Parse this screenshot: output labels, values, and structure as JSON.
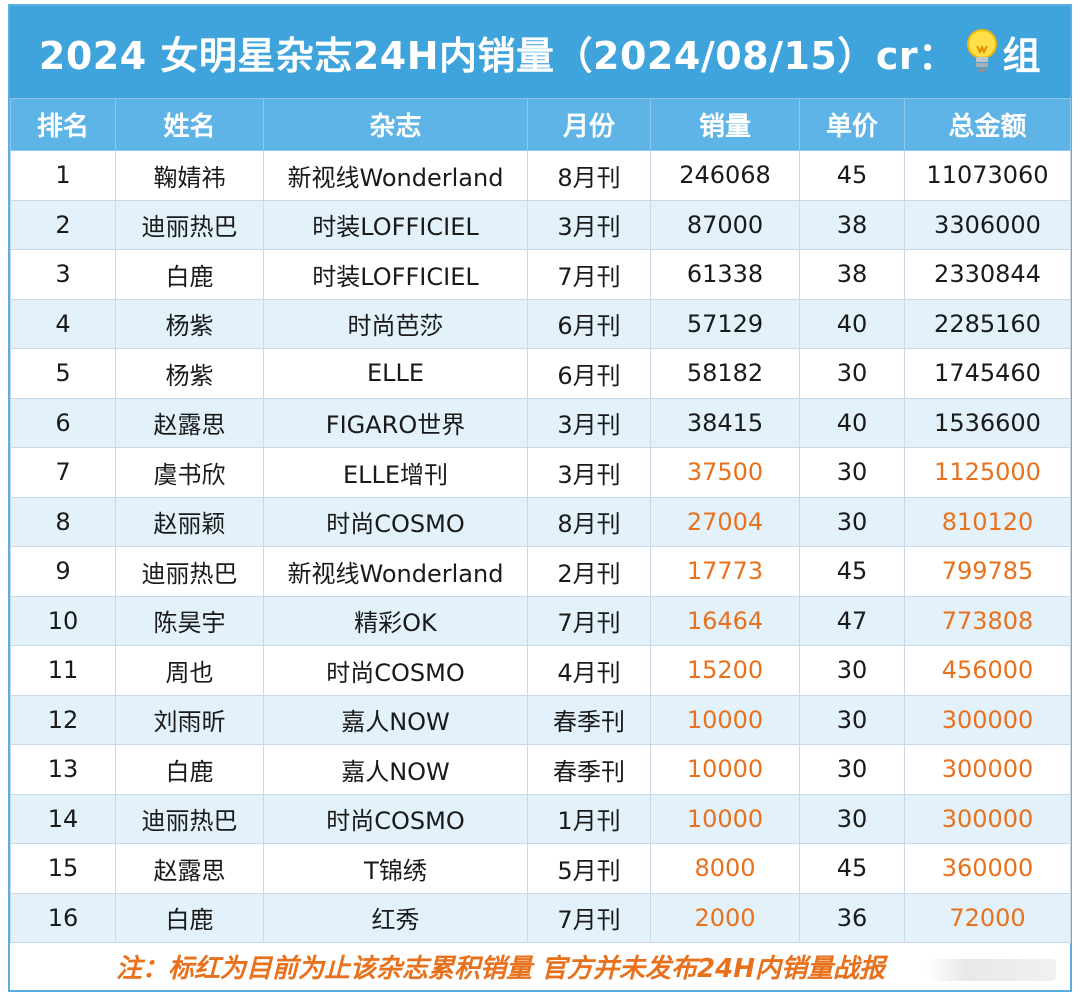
{
  "title": {
    "text_before": "2024 女明星杂志24H内销量（2024/08/15）cr：",
    "text_after": "组",
    "icon": "light-bulb-icon"
  },
  "colors": {
    "header_bg": "#3fa3dc",
    "column_header_bg": "#5eb4e6",
    "stripe_bg": "#e3f1fb",
    "highlight_text": "#e8711d"
  },
  "table": {
    "columns": [
      "排名",
      "姓名",
      "杂志",
      "月份",
      "销量",
      "单价",
      "总金额"
    ],
    "rows": [
      {
        "rank": "1",
        "name": "鞠婧祎",
        "magazine": "新视线Wonderland",
        "month": "8月刊",
        "sales": "246068",
        "price": "45",
        "total": "11073060",
        "highlight": false
      },
      {
        "rank": "2",
        "name": "迪丽热巴",
        "magazine": "时装LOFFICIEL",
        "month": "3月刊",
        "sales": "87000",
        "price": "38",
        "total": "3306000",
        "highlight": false
      },
      {
        "rank": "3",
        "name": "白鹿",
        "magazine": "时装LOFFICIEL",
        "month": "7月刊",
        "sales": "61338",
        "price": "38",
        "total": "2330844",
        "highlight": false
      },
      {
        "rank": "4",
        "name": "杨紫",
        "magazine": "时尚芭莎",
        "month": "6月刊",
        "sales": "57129",
        "price": "40",
        "total": "2285160",
        "highlight": false
      },
      {
        "rank": "5",
        "name": "杨紫",
        "magazine": "ELLE",
        "month": "6月刊",
        "sales": "58182",
        "price": "30",
        "total": "1745460",
        "highlight": false
      },
      {
        "rank": "6",
        "name": "赵露思",
        "magazine": "FIGARO世界",
        "month": "3月刊",
        "sales": "38415",
        "price": "40",
        "total": "1536600",
        "highlight": false
      },
      {
        "rank": "7",
        "name": "虞书欣",
        "magazine": "ELLE增刊",
        "month": "3月刊",
        "sales": "37500",
        "price": "30",
        "total": "1125000",
        "highlight": true
      },
      {
        "rank": "8",
        "name": "赵丽颖",
        "magazine": "时尚COSMO",
        "month": "8月刊",
        "sales": "27004",
        "price": "30",
        "total": "810120",
        "highlight": true
      },
      {
        "rank": "9",
        "name": "迪丽热巴",
        "magazine": "新视线Wonderland",
        "month": "2月刊",
        "sales": "17773",
        "price": "45",
        "total": "799785",
        "highlight": true
      },
      {
        "rank": "10",
        "name": "陈昊宇",
        "magazine": "精彩OK",
        "month": "7月刊",
        "sales": "16464",
        "price": "47",
        "total": "773808",
        "highlight": true
      },
      {
        "rank": "11",
        "name": "周也",
        "magazine": "时尚COSMO",
        "month": "4月刊",
        "sales": "15200",
        "price": "30",
        "total": "456000",
        "highlight": true
      },
      {
        "rank": "12",
        "name": "刘雨昕",
        "magazine": "嘉人NOW",
        "month": "春季刊",
        "sales": "10000",
        "price": "30",
        "total": "300000",
        "highlight": true
      },
      {
        "rank": "13",
        "name": "白鹿",
        "magazine": "嘉人NOW",
        "month": "春季刊",
        "sales": "10000",
        "price": "30",
        "total": "300000",
        "highlight": true
      },
      {
        "rank": "14",
        "name": "迪丽热巴",
        "magazine": "时尚COSMO",
        "month": "1月刊",
        "sales": "10000",
        "price": "30",
        "total": "300000",
        "highlight": true
      },
      {
        "rank": "15",
        "name": "赵露思",
        "magazine": "T锦绣",
        "month": "5月刊",
        "sales": "8000",
        "price": "45",
        "total": "360000",
        "highlight": true
      },
      {
        "rank": "16",
        "name": "白鹿",
        "magazine": "红秀",
        "month": "7月刊",
        "sales": "2000",
        "price": "36",
        "total": "72000",
        "highlight": true
      }
    ]
  },
  "note": "注：标红为目前为止该杂志累积销量 官方并未发布24H内销量战报"
}
